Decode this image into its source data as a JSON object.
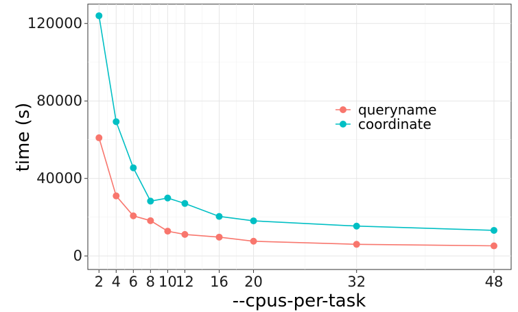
{
  "chart_data": {
    "type": "line",
    "title": "",
    "xlabel": "--cpus-per-task",
    "ylabel": "time (s)",
    "x": [
      2,
      4,
      6,
      8,
      10,
      12,
      16,
      20,
      32,
      48
    ],
    "x_tick_labels": [
      "2",
      "4",
      "6",
      "8",
      "10",
      "12",
      "16",
      "20",
      "32",
      "48"
    ],
    "y_ticks": [
      0,
      40000,
      80000,
      120000
    ],
    "y_tick_labels": [
      "0",
      "40000",
      "80000",
      "120000"
    ],
    "xlim": [
      0.7,
      50
    ],
    "ylim": [
      -7000,
      130000
    ],
    "grid": true,
    "legend_position": "right",
    "series": [
      {
        "name": "queryname",
        "color": "#F8766D",
        "values": [
          61000,
          31000,
          20700,
          18200,
          12800,
          11100,
          9700,
          7600,
          6000,
          5200
        ]
      },
      {
        "name": "coordinate",
        "color": "#00BFC4",
        "values": [
          124000,
          69300,
          45500,
          28300,
          29900,
          27100,
          20400,
          18100,
          15400,
          13200
        ]
      }
    ]
  }
}
